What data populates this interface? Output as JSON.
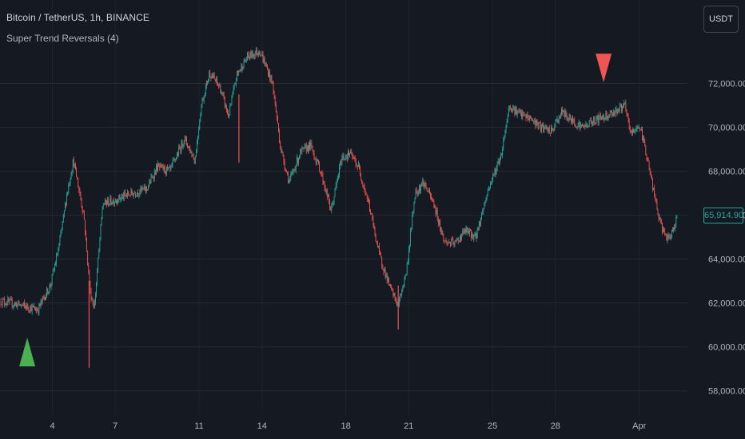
{
  "header": {
    "symbol_title": "Bitcoin / TetherUS, 1h, BINANCE",
    "indicator_label": "Super Trend Reversals (4)",
    "currency_button": "USDT",
    "last_price_label": "65,914.90"
  },
  "colors": {
    "background": "#151922",
    "grid": "#262b35",
    "up_candle": "#26a69a",
    "down_candle": "#ef5350",
    "buy_marker": "#4caf50",
    "sell_marker": "#f05454",
    "axis_text": "#b2b5be",
    "price_tag": "#26a69a"
  },
  "chart_data": {
    "type": "candlestick",
    "interval": "1h",
    "y_ticks": [
      "58,000.00",
      "60,000.00",
      "62,000.00",
      "64,000.00",
      "66,000.00",
      "68,000.00",
      "70,000.00",
      "72,000.00"
    ],
    "y_tick_values": [
      58000,
      60000,
      62000,
      64000,
      66000,
      68000,
      70000,
      72000
    ],
    "x_ticks": [
      "4",
      "7",
      "11",
      "14",
      "18",
      "21",
      "25",
      "28",
      "Apr"
    ],
    "x_tick_days": [
      4,
      7,
      11,
      14,
      18,
      21,
      25,
      28,
      32
    ],
    "ylim": [
      56900,
      75800
    ],
    "xlim_days": [
      1.5,
      34.3
    ],
    "grid": true,
    "last_price": 65914.9,
    "price_path": [
      [
        1.5,
        62100
      ],
      [
        2.5,
        61900
      ],
      [
        3.3,
        61700
      ],
      [
        3.9,
        62800
      ],
      [
        4.3,
        64500
      ],
      [
        4.7,
        67000
      ],
      [
        5.0,
        68500
      ],
      [
        5.5,
        66000
      ],
      [
        5.8,
        62500
      ],
      [
        6.0,
        61800
      ],
      [
        6.4,
        66500
      ],
      [
        7.0,
        66700
      ],
      [
        7.8,
        67000
      ],
      [
        8.5,
        67200
      ],
      [
        9.0,
        68200
      ],
      [
        9.6,
        68000
      ],
      [
        10.3,
        69500
      ],
      [
        10.8,
        68500
      ],
      [
        11.1,
        71000
      ],
      [
        11.5,
        72500
      ],
      [
        12.0,
        71800
      ],
      [
        12.4,
        70500
      ],
      [
        12.8,
        72400
      ],
      [
        13.3,
        73200
      ],
      [
        13.9,
        73500
      ],
      [
        14.5,
        72000
      ],
      [
        14.9,
        69000
      ],
      [
        15.3,
        67500
      ],
      [
        15.8,
        68800
      ],
      [
        16.3,
        69200
      ],
      [
        16.8,
        68000
      ],
      [
        17.3,
        66200
      ],
      [
        17.8,
        68600
      ],
      [
        18.2,
        68800
      ],
      [
        18.6,
        68200
      ],
      [
        19.1,
        66500
      ],
      [
        19.6,
        64200
      ],
      [
        20.1,
        62700
      ],
      [
        20.5,
        61900
      ],
      [
        20.9,
        63500
      ],
      [
        21.3,
        67000
      ],
      [
        21.7,
        67500
      ],
      [
        22.2,
        66500
      ],
      [
        22.7,
        64800
      ],
      [
        23.2,
        64700
      ],
      [
        23.7,
        65300
      ],
      [
        24.2,
        65000
      ],
      [
        24.8,
        67200
      ],
      [
        25.4,
        68700
      ],
      [
        25.8,
        71000
      ],
      [
        26.3,
        70600
      ],
      [
        26.8,
        70400
      ],
      [
        27.3,
        70000
      ],
      [
        27.8,
        69800
      ],
      [
        28.3,
        70700
      ],
      [
        28.8,
        70300
      ],
      [
        29.3,
        70000
      ],
      [
        29.8,
        70300
      ],
      [
        30.3,
        70500
      ],
      [
        30.8,
        70700
      ],
      [
        31.3,
        71000
      ],
      [
        31.6,
        69700
      ],
      [
        32.0,
        70100
      ],
      [
        32.3,
        69000
      ],
      [
        32.7,
        67000
      ],
      [
        33.0,
        65600
      ],
      [
        33.4,
        64800
      ],
      [
        33.8,
        65900
      ]
    ],
    "spikes": [
      {
        "day": 5.75,
        "low": 59050,
        "high": 63000
      },
      {
        "day": 12.9,
        "low": 68400,
        "high": 71500
      },
      {
        "day": 20.5,
        "low": 60800,
        "high": 62800
      }
    ],
    "buy_signals": [
      {
        "day": 2.8,
        "price": 59700
      }
    ],
    "sell_signals": [
      {
        "day": 30.3,
        "price": 72700
      }
    ]
  }
}
